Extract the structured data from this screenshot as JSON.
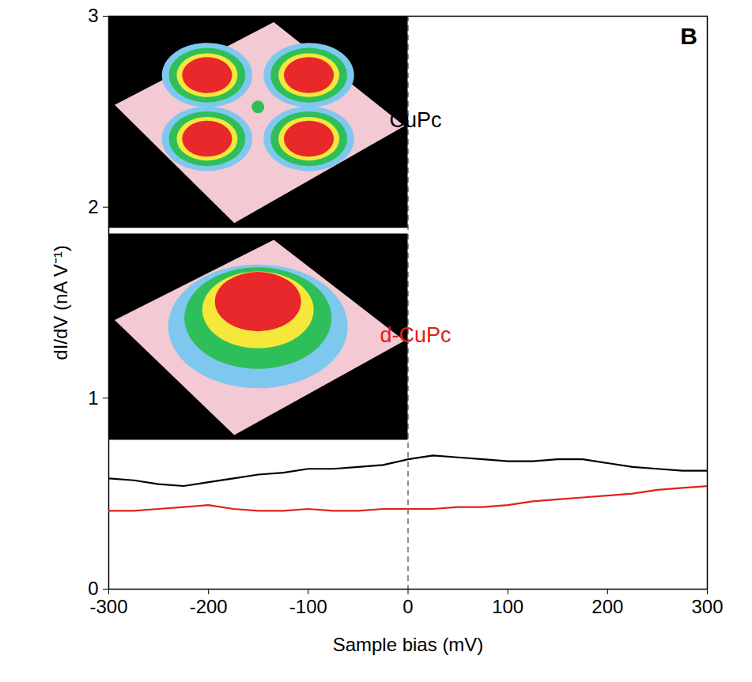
{
  "chart_data": {
    "type": "line",
    "panel_label": "B",
    "x_label": "Sample bias (mV)",
    "y_label": "dI/dV (nA V⁻¹)",
    "x": [
      -300,
      -275,
      -250,
      -225,
      -200,
      -175,
      -150,
      -125,
      -100,
      -75,
      -50,
      -25,
      0,
      25,
      50,
      75,
      100,
      125,
      150,
      175,
      200,
      225,
      250,
      275,
      300
    ],
    "series": [
      {
        "name": "CuPc",
        "color": "#000000",
        "values": [
          0.58,
          0.57,
          0.55,
          0.54,
          0.56,
          0.58,
          0.6,
          0.61,
          0.63,
          0.63,
          0.64,
          0.65,
          0.68,
          0.7,
          0.69,
          0.68,
          0.67,
          0.67,
          0.68,
          0.68,
          0.66,
          0.64,
          0.63,
          0.62,
          0.62
        ]
      },
      {
        "name": "d-CuPc",
        "color": "#e0201b",
        "values": [
          0.41,
          0.41,
          0.42,
          0.43,
          0.44,
          0.42,
          0.41,
          0.41,
          0.42,
          0.41,
          0.41,
          0.42,
          0.42,
          0.42,
          0.43,
          0.43,
          0.44,
          0.46,
          0.47,
          0.48,
          0.49,
          0.5,
          0.52,
          0.53,
          0.54
        ]
      }
    ],
    "xlim": [
      -300,
      300
    ],
    "xticks": [
      -300,
      -200,
      -100,
      0,
      100,
      200,
      300
    ],
    "ylim": [
      0,
      3
    ],
    "yticks": [
      0,
      1,
      2,
      3
    ],
    "reference_lines": [
      {
        "x": 0,
        "line_style": "dashed"
      }
    ]
  }
}
